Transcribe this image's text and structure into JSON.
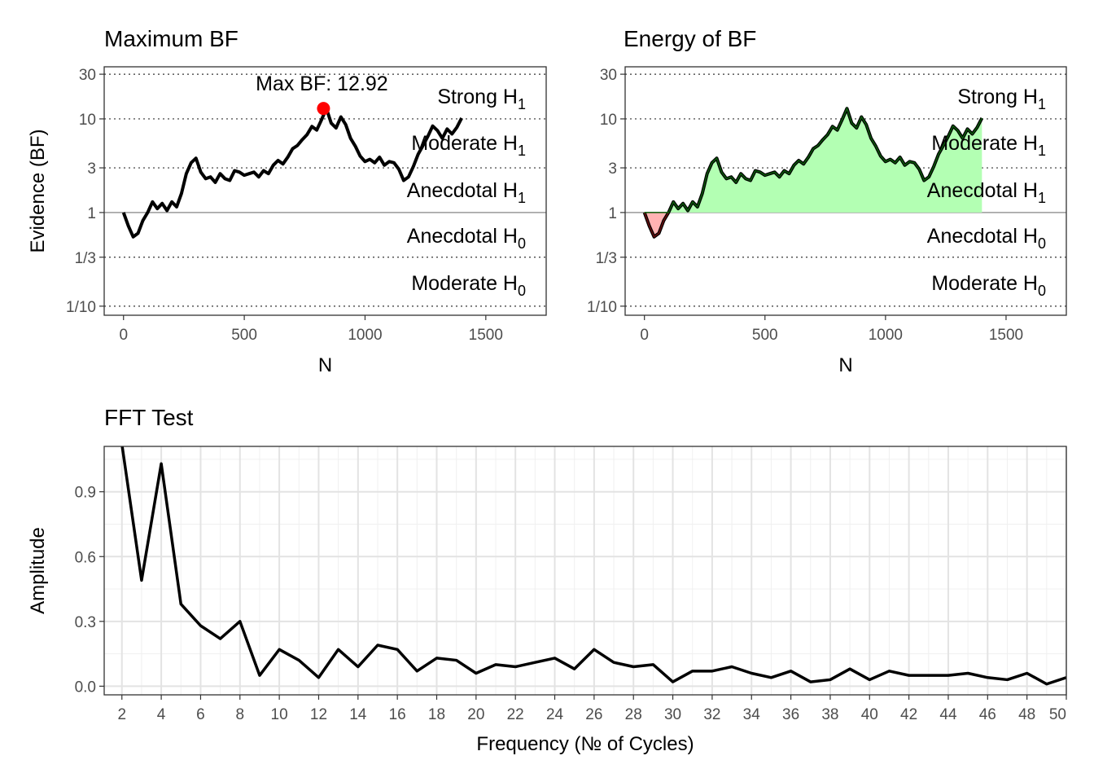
{
  "chart_data": [
    {
      "type": "line",
      "title": "Maximum BF",
      "xlabel": "N",
      "ylabel": "Evidence (BF)",
      "xlim": [
        -80,
        1750
      ],
      "x_ticks": [
        0,
        500,
        1000,
        1500
      ],
      "x_tick_labels": [
        "0",
        "500",
        "1000",
        "1500"
      ],
      "y_scale": "log",
      "ylim": [
        0.08,
        36
      ],
      "y_ticks": [
        0.1,
        0.3333,
        1,
        3,
        10,
        30
      ],
      "y_tick_labels": [
        "1/10",
        "1/3",
        "1",
        "3",
        "10",
        "30"
      ],
      "reference_line": 1,
      "dotted_lines": [
        0.1,
        0.3333,
        3,
        10,
        30
      ],
      "zones": [
        {
          "label": "Strong H",
          "sub": "1",
          "y": 17.5
        },
        {
          "label": "Moderate H",
          "sub": "1",
          "y": 5.6
        },
        {
          "label": "Anecdotal H",
          "sub": "1",
          "y": 1.75
        },
        {
          "label": "Anecdotal H",
          "sub": "0",
          "y": 0.57
        },
        {
          "label": "Moderate H",
          "sub": "0",
          "y": 0.178
        }
      ],
      "series": [
        {
          "x": [
            0,
            20,
            40,
            60,
            80,
            100,
            120,
            140,
            160,
            180,
            200,
            220,
            240,
            260,
            280,
            300,
            320,
            340,
            360,
            380,
            400,
            420,
            440,
            460,
            480,
            500,
            520,
            540,
            560,
            580,
            600,
            620,
            640,
            660,
            680,
            700,
            720,
            740,
            760,
            780,
            800,
            820,
            840,
            860,
            880,
            900,
            920,
            940,
            960,
            980,
            1000,
            1020,
            1040,
            1060,
            1080,
            1100,
            1120,
            1140,
            1160,
            1180,
            1200,
            1220,
            1240,
            1260,
            1280,
            1300,
            1320,
            1340,
            1360,
            1380,
            1400
          ],
          "y": [
            1.0,
            0.72,
            0.55,
            0.6,
            0.82,
            1.0,
            1.3,
            1.1,
            1.25,
            1.05,
            1.3,
            1.15,
            1.6,
            2.6,
            3.4,
            3.8,
            2.7,
            2.3,
            2.4,
            2.1,
            2.6,
            2.3,
            2.2,
            2.8,
            2.7,
            2.5,
            2.6,
            2.7,
            2.4,
            2.8,
            2.6,
            3.2,
            3.6,
            3.3,
            3.9,
            4.8,
            5.2,
            6.0,
            6.8,
            8.3,
            7.6,
            9.8,
            12.92,
            9.0,
            8.0,
            10.5,
            8.7,
            6.2,
            5.1,
            4.0,
            3.5,
            3.7,
            3.4,
            3.9,
            3.2,
            3.5,
            3.4,
            2.9,
            2.2,
            2.4,
            3.1,
            4.2,
            5.2,
            6.5,
            8.4,
            7.5,
            6.2,
            7.8,
            6.9,
            8.1,
            10.2
          ]
        }
      ],
      "max_point": {
        "x": 828,
        "y": 12.92,
        "label": "Max BF: 12.92",
        "color": "#ff0000"
      }
    },
    {
      "type": "area",
      "title": "Energy of BF",
      "xlabel": "N",
      "ylabel": "",
      "xlim": [
        -80,
        1750
      ],
      "x_ticks": [
        0,
        500,
        1000,
        1500
      ],
      "x_tick_labels": [
        "0",
        "500",
        "1000",
        "1500"
      ],
      "y_scale": "log",
      "ylim": [
        0.08,
        36
      ],
      "y_ticks": [
        0.1,
        0.3333,
        1,
        3,
        10,
        30
      ],
      "y_tick_labels": [
        "1/10",
        "1/3",
        "1",
        "3",
        "10",
        "30"
      ],
      "reference_line": 1,
      "dotted_lines": [
        0.1,
        0.3333,
        3,
        10,
        30
      ],
      "positive_fill": "#b3ffb3",
      "negative_fill": "#ffb3b3",
      "positive_line": "#0a5c0a",
      "negative_line": "#6b0d0d",
      "zones": [
        {
          "label": "Strong H",
          "sub": "1",
          "y": 17.5
        },
        {
          "label": "Moderate H",
          "sub": "1",
          "y": 5.6
        },
        {
          "label": "Anecdotal H",
          "sub": "1",
          "y": 1.75
        },
        {
          "label": "Anecdotal H",
          "sub": "0",
          "y": 0.57
        },
        {
          "label": "Moderate H",
          "sub": "0",
          "y": 0.178
        }
      ]
    },
    {
      "type": "line",
      "title": "FFT Test",
      "xlabel": "Frequency (№ of Cycles)",
      "ylabel": "Amplitude",
      "xlim": [
        1.1,
        50
      ],
      "ylim": [
        -0.04,
        1.11
      ],
      "x_ticks": [
        2,
        4,
        6,
        8,
        10,
        12,
        14,
        16,
        18,
        20,
        22,
        24,
        26,
        28,
        30,
        32,
        34,
        36,
        38,
        40,
        42,
        44,
        46,
        48,
        50
      ],
      "x_tick_labels": [
        "2",
        "4",
        "6",
        "8",
        "10",
        "12",
        "14",
        "16",
        "18",
        "20",
        "22",
        "24",
        "26",
        "28",
        "30",
        "32",
        "34",
        "36",
        "38",
        "40",
        "42",
        "44",
        "46",
        "48",
        "50"
      ],
      "y_ticks": [
        0.0,
        0.3,
        0.6,
        0.9
      ],
      "y_tick_labels": [
        "0.0",
        "0.3",
        "0.6",
        "0.9"
      ],
      "grid": true,
      "series": [
        {
          "x": [
            2,
            3,
            4,
            5,
            6,
            7,
            8,
            9,
            10,
            11,
            12,
            13,
            14,
            15,
            16,
            17,
            18,
            19,
            20,
            21,
            22,
            23,
            24,
            25,
            26,
            27,
            28,
            29,
            30,
            31,
            32,
            33,
            34,
            35,
            36,
            37,
            38,
            39,
            40,
            41,
            42,
            43,
            44,
            45,
            46,
            47,
            48,
            49,
            50
          ],
          "y": [
            1.12,
            0.49,
            1.03,
            0.38,
            0.28,
            0.22,
            0.3,
            0.05,
            0.17,
            0.12,
            0.04,
            0.17,
            0.09,
            0.19,
            0.17,
            0.07,
            0.13,
            0.12,
            0.06,
            0.1,
            0.09,
            0.11,
            0.13,
            0.08,
            0.17,
            0.11,
            0.09,
            0.1,
            0.02,
            0.07,
            0.07,
            0.09,
            0.06,
            0.04,
            0.07,
            0.02,
            0.03,
            0.08,
            0.03,
            0.07,
            0.05,
            0.05,
            0.05,
            0.06,
            0.04,
            0.03,
            0.06,
            0.01,
            0.04
          ]
        }
      ]
    }
  ]
}
